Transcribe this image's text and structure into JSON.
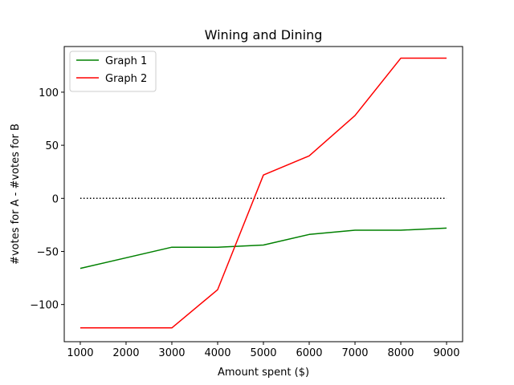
{
  "chart_data": {
    "type": "line",
    "title": "Wining and Dining",
    "xlabel": "Amount spent ($)",
    "ylabel": "#votes for A - #votes for B",
    "xlim": [
      650,
      9350
    ],
    "ylim": [
      -135,
      143
    ],
    "xticks": [
      1000,
      2000,
      3000,
      4000,
      5000,
      6000,
      7000,
      8000,
      9000
    ],
    "xtick_labels": [
      "1000",
      "2000",
      "3000",
      "4000",
      "5000",
      "6000",
      "7000",
      "8000",
      "9000"
    ],
    "yticks": [
      -100,
      -50,
      0,
      50,
      100
    ],
    "ytick_labels": [
      "−100",
      "−50",
      "0",
      "50",
      "100"
    ],
    "grid": false,
    "legend_position": "upper-left",
    "series": [
      {
        "name": "Graph 1",
        "color": "#008000",
        "style": "solid",
        "x": [
          1000,
          3000,
          4000,
          5000,
          6000,
          7000,
          8000,
          9000
        ],
        "y": [
          -66,
          -46,
          -46,
          -44,
          -34,
          -30,
          -30,
          -28
        ]
      },
      {
        "name": "Graph 2",
        "color": "#ff0000",
        "style": "solid",
        "x": [
          1000,
          3000,
          4000,
          5000,
          6000,
          7000,
          8000,
          9000
        ],
        "y": [
          -122,
          -122,
          -86,
          22,
          40,
          78,
          132,
          132
        ]
      },
      {
        "color": "#000000",
        "style": "dotted",
        "x": [
          1000,
          9000
        ],
        "y": [
          0,
          0
        ]
      }
    ]
  }
}
